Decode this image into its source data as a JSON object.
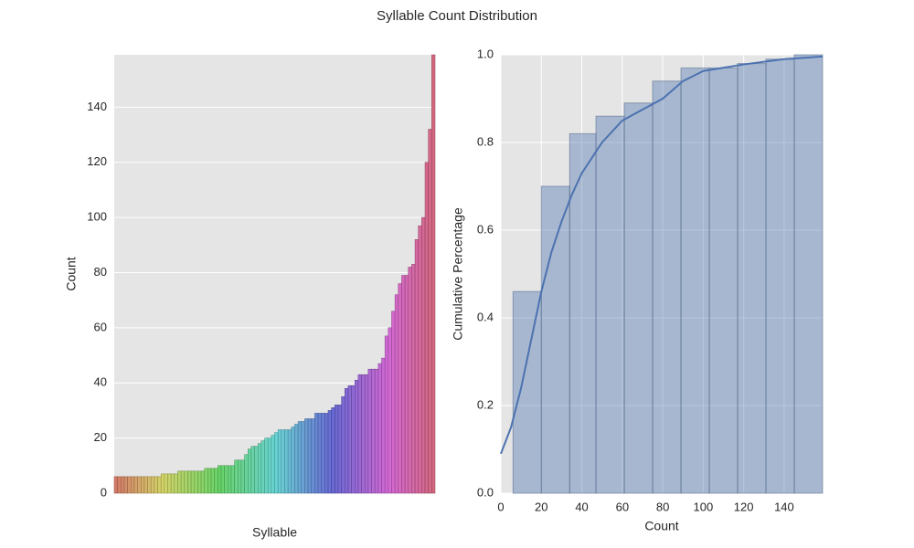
{
  "chart_data": [
    {
      "type": "bar",
      "title": "Syllable Count Distribution",
      "x_label": "Syllable",
      "y_label": "Count",
      "categories": [
        null,
        null,
        null,
        null,
        null,
        null,
        null,
        null,
        null,
        null,
        null,
        null,
        null,
        null,
        null,
        null,
        null,
        null,
        null,
        null,
        null,
        null,
        null,
        null,
        null,
        null,
        null,
        null,
        null,
        null,
        null,
        null,
        null,
        null,
        null,
        null,
        null,
        null,
        null,
        null,
        null,
        null,
        null,
        null,
        null,
        null,
        null,
        null,
        null,
        null,
        null,
        null,
        null,
        null,
        null,
        null,
        null,
        null,
        null,
        null,
        null,
        null,
        null,
        null,
        null,
        null,
        null,
        null,
        null,
        null,
        null,
        null,
        null,
        null,
        null,
        null,
        null,
        null,
        null,
        null,
        null,
        null,
        null,
        null,
        null,
        null,
        null,
        null,
        null,
        null,
        null,
        null,
        null,
        null,
        null,
        null
      ],
      "values": [
        6,
        6,
        6,
        6,
        6,
        6,
        6,
        6,
        6,
        6,
        6,
        6,
        6,
        6,
        7,
        7,
        7,
        7,
        7,
        8,
        8,
        8,
        8,
        8,
        8,
        8,
        8,
        9,
        9,
        9,
        9,
        10,
        10,
        10,
        10,
        10,
        12,
        12,
        12,
        14,
        16,
        17,
        17,
        18,
        19,
        20,
        20,
        21,
        22,
        23,
        23,
        23,
        23,
        24,
        25,
        26,
        26,
        27,
        27,
        27,
        29,
        29,
        29,
        29,
        30,
        31,
        32,
        32,
        35,
        38,
        39,
        39,
        41,
        43,
        43,
        43,
        45,
        45,
        45,
        47,
        49,
        57,
        60,
        66,
        72,
        76,
        79,
        79,
        82,
        83,
        92,
        97,
        100,
        120,
        132,
        159
      ],
      "palette": "husl",
      "ylim": [
        0,
        159
      ],
      "yticks": [
        0,
        20,
        40,
        60,
        80,
        100,
        120,
        140
      ],
      "grid": true
    },
    {
      "type": "histogram",
      "x_label": "Count",
      "y_label": "Cumulative Percentage",
      "bins": [
        6,
        20,
        34,
        47,
        61,
        75,
        89,
        103,
        117,
        131,
        145,
        159
      ],
      "values": [
        0.46,
        0.7,
        0.82,
        0.86,
        0.89,
        0.94,
        0.97,
        0.97,
        0.98,
        0.99,
        1.0
      ],
      "color": "#4c72b0",
      "kde": {
        "x": [
          0,
          5,
          10,
          15,
          20,
          25,
          30,
          35,
          40,
          50,
          60,
          70,
          80,
          90,
          100,
          120,
          140,
          159
        ],
        "y": [
          0.09,
          0.15,
          0.24,
          0.35,
          0.46,
          0.55,
          0.62,
          0.68,
          0.73,
          0.8,
          0.85,
          0.875,
          0.9,
          0.94,
          0.963,
          0.978,
          0.99,
          0.996
        ]
      },
      "xlim": [
        0,
        159
      ],
      "xticks": [
        0,
        20,
        40,
        60,
        80,
        100,
        120,
        140
      ],
      "ylim": [
        0,
        1
      ],
      "yticks": [
        {
          "value": 0,
          "label": "0.0"
        },
        0.2,
        0.4,
        0.6,
        0.8,
        {
          "value": 1,
          "label": "1.0"
        }
      ],
      "grid": true
    }
  ]
}
